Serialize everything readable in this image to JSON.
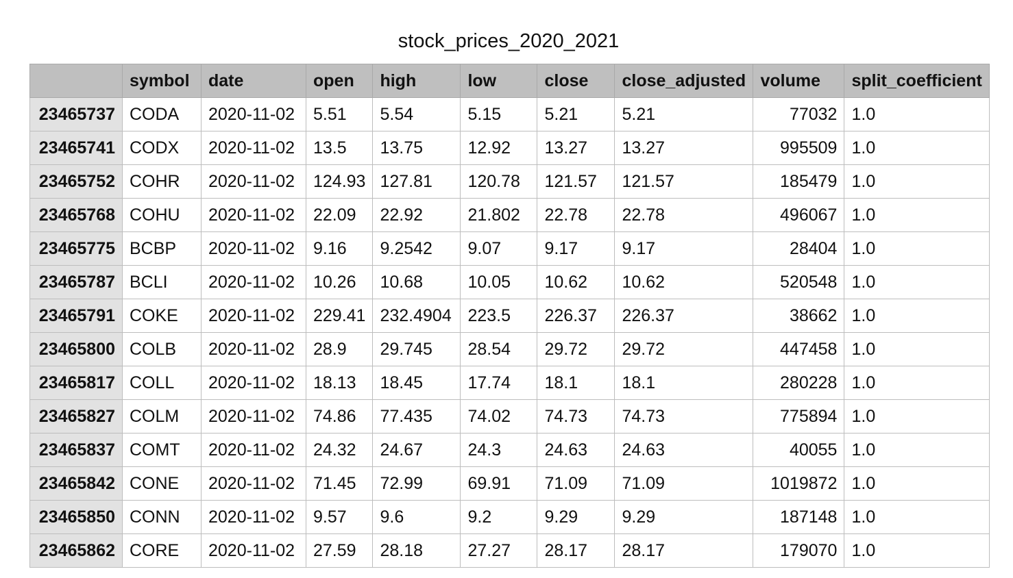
{
  "title": "stock_prices_2020_2021",
  "table": {
    "columns": [
      "",
      "symbol",
      "date",
      "open",
      "high",
      "low",
      "close",
      "close_adjusted",
      "volume",
      "split_coefficient"
    ],
    "rows": [
      [
        "23465737",
        "CODA",
        "2020-11-02",
        "5.51",
        "5.54",
        "5.15",
        "5.21",
        "5.21",
        "77032",
        "1.0"
      ],
      [
        "23465741",
        "CODX",
        "2020-11-02",
        "13.5",
        "13.75",
        "12.92",
        "13.27",
        "13.27",
        "995509",
        "1.0"
      ],
      [
        "23465752",
        "COHR",
        "2020-11-02",
        "124.93",
        "127.81",
        "120.78",
        "121.57",
        "121.57",
        "185479",
        "1.0"
      ],
      [
        "23465768",
        "COHU",
        "2020-11-02",
        "22.09",
        "22.92",
        "21.802",
        "22.78",
        "22.78",
        "496067",
        "1.0"
      ],
      [
        "23465775",
        "BCBP",
        "2020-11-02",
        "9.16",
        "9.2542",
        "9.07",
        "9.17",
        "9.17",
        "28404",
        "1.0"
      ],
      [
        "23465787",
        "BCLI",
        "2020-11-02",
        "10.26",
        "10.68",
        "10.05",
        "10.62",
        "10.62",
        "520548",
        "1.0"
      ],
      [
        "23465791",
        "COKE",
        "2020-11-02",
        "229.41",
        "232.4904",
        "223.5",
        "226.37",
        "226.37",
        "38662",
        "1.0"
      ],
      [
        "23465800",
        "COLB",
        "2020-11-02",
        "28.9",
        "29.745",
        "28.54",
        "29.72",
        "29.72",
        "447458",
        "1.0"
      ],
      [
        "23465817",
        "COLL",
        "2020-11-02",
        "18.13",
        "18.45",
        "17.74",
        "18.1",
        "18.1",
        "280228",
        "1.0"
      ],
      [
        "23465827",
        "COLM",
        "2020-11-02",
        "74.86",
        "77.435",
        "74.02",
        "74.73",
        "74.73",
        "775894",
        "1.0"
      ],
      [
        "23465837",
        "COMT",
        "2020-11-02",
        "24.32",
        "24.67",
        "24.3",
        "24.63",
        "24.63",
        "40055",
        "1.0"
      ],
      [
        "23465842",
        "CONE",
        "2020-11-02",
        "71.45",
        "72.99",
        "69.91",
        "71.09",
        "71.09",
        "1019872",
        "1.0"
      ],
      [
        "23465850",
        "CONN",
        "2020-11-02",
        "9.57",
        "9.6",
        "9.2",
        "9.29",
        "9.29",
        "187148",
        "1.0"
      ],
      [
        "23465862",
        "CORE",
        "2020-11-02",
        "27.59",
        "28.18",
        "27.27",
        "28.17",
        "28.17",
        "179070",
        "1.0"
      ]
    ]
  }
}
